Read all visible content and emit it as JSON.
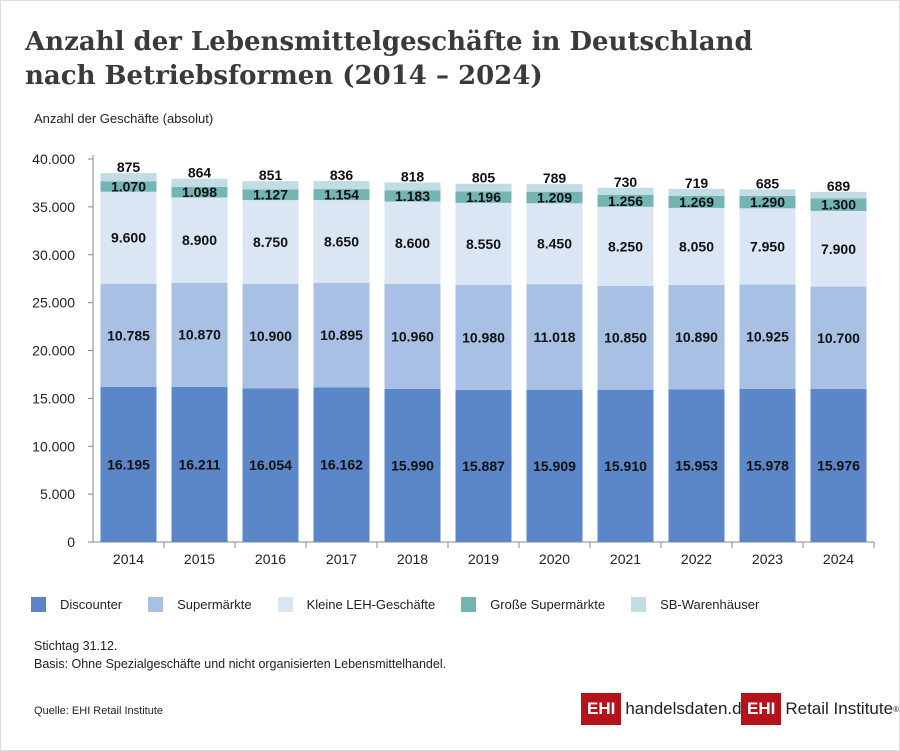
{
  "header": {
    "title_line1": "Anzahl der Lebensmittelgeschäfte in Deutschland",
    "title_line2": "nach Betriebsformen (2014 – 2024)"
  },
  "chart_data": {
    "type": "bar",
    "stacked": true,
    "ylabel": "Anzahl der Geschäfte (absolut)",
    "ylim": [
      0,
      40000
    ],
    "yticks": [
      "0",
      "5.000",
      "10.000",
      "15.000",
      "20.000",
      "25.000",
      "30.000",
      "35.000",
      "40.000"
    ],
    "categories": [
      "2014",
      "2015",
      "2016",
      "2017",
      "2018",
      "2019",
      "2020",
      "2021",
      "2022",
      "2023",
      "2024"
    ],
    "series": [
      {
        "name": "Discounter",
        "color": "#5b86c8",
        "values": [
          16195,
          16211,
          16054,
          16162,
          15990,
          15887,
          15909,
          15910,
          15953,
          15978,
          15976
        ]
      },
      {
        "name": "Supermärkte",
        "color": "#a8c0e3",
        "values": [
          10785,
          10870,
          10900,
          10895,
          10960,
          10980,
          11018,
          10850,
          10890,
          10925,
          10700
        ]
      },
      {
        "name": "Kleine LEH-Geschäfte",
        "color": "#dbe6f4",
        "values": [
          9600,
          8900,
          8750,
          8650,
          8600,
          8550,
          8450,
          8250,
          8050,
          7950,
          7900
        ]
      },
      {
        "name": "Große Supermärkte",
        "color": "#73b5b3",
        "values": [
          1070,
          1098,
          1127,
          1154,
          1183,
          1196,
          1209,
          1256,
          1269,
          1290,
          1300
        ]
      },
      {
        "name": "SB-Warenhäuser",
        "color": "#c2dce3",
        "values": [
          875,
          864,
          851,
          836,
          818,
          805,
          789,
          730,
          719,
          685,
          689
        ]
      }
    ],
    "legend": "bottom"
  },
  "notes": {
    "line1": "Stichtag 31.12.",
    "line2": "Basis: Ohne Spezialgeschäfte und nicht organisierten Lebensmittelhandel."
  },
  "source": "Quelle: EHI Retail Institute",
  "logos": {
    "ehi": "EHI",
    "site": "handelsdaten.de",
    "institute": "Retail Institute",
    "reg": "®"
  }
}
